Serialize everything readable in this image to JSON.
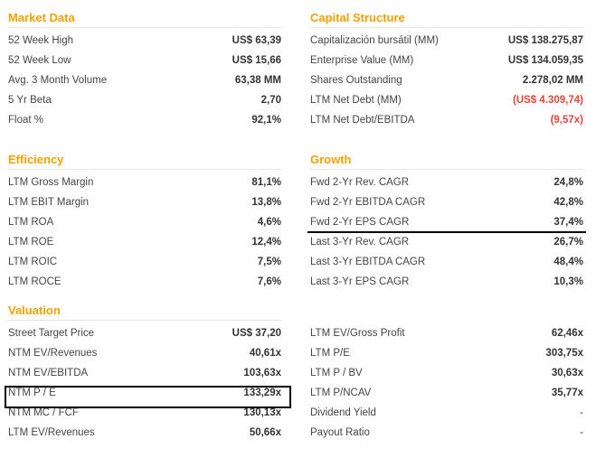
{
  "sections": {
    "market_data": {
      "title": "Market Data",
      "rows": [
        {
          "label": "52 Week High",
          "value": "US$ 63,39"
        },
        {
          "label": "52 Week Low",
          "value": "US$ 15,66"
        },
        {
          "label": "Avg. 3 Month Volume",
          "value": "63,38 MM"
        },
        {
          "label": "5 Yr Beta",
          "value": "2,70"
        },
        {
          "label": "Float %",
          "value": "92,1%"
        }
      ]
    },
    "capital_structure": {
      "title": "Capital Structure",
      "rows": [
        {
          "label": "Capitalización bursátil (MM)",
          "value": "US$ 138.275,87"
        },
        {
          "label": "Enterprise Value (MM)",
          "value": "US$ 134.059,35"
        },
        {
          "label": "Shares Outstanding",
          "value": "2.278,02 MM"
        },
        {
          "label": "LTM Net Debt (MM)",
          "value": "(US$ 4.309,74)"
        },
        {
          "label": "LTM Net Debt/EBITDA",
          "value": "(9,57x)"
        }
      ]
    },
    "efficiency": {
      "title": "Efficiency",
      "rows": [
        {
          "label": "LTM Gross Margin",
          "value": "81,1%"
        },
        {
          "label": "LTM EBIT Margin",
          "value": "13,8%"
        },
        {
          "label": "LTM ROA",
          "value": "4,6%"
        },
        {
          "label": "LTM ROE",
          "value": "12,4%"
        },
        {
          "label": "LTM ROIC",
          "value": "7,5%"
        },
        {
          "label": "LTM ROCE",
          "value": "7,6%"
        }
      ]
    },
    "growth": {
      "title": "Growth",
      "rows": [
        {
          "label": "Fwd 2-Yr Rev. CAGR",
          "value": "24,8%"
        },
        {
          "label": "Fwd 2-Yr EBITDA CAGR",
          "value": "42,8%"
        },
        {
          "label": "Fwd 2-Yr EPS CAGR",
          "value": "37,4%"
        },
        {
          "label": "Last 3-Yr Rev. CAGR",
          "value": "26,7%"
        },
        {
          "label": "Last 3-Yr EBITDA CAGR",
          "value": "48,4%"
        },
        {
          "label": "Last 3-Yr EPS CAGR",
          "value": "10,3%"
        }
      ]
    },
    "valuation": {
      "title": "Valuation",
      "left_rows": [
        {
          "label": "Street Target Price",
          "value": "US$ 37,20"
        },
        {
          "label": "NTM EV/Revenues",
          "value": "40,61x"
        },
        {
          "label": "NTM EV/EBITDA",
          "value": "103,63x"
        },
        {
          "label": "NTM P / E",
          "value": "133,29x"
        },
        {
          "label": "NTM MC / FCF",
          "value": "130,13x"
        },
        {
          "label": "LTM EV/Revenues",
          "value": "50,66x"
        }
      ],
      "right_rows": [
        {
          "label": "LTM EV/Gross Profit",
          "value": "62,46x"
        },
        {
          "label": "LTM P/E",
          "value": "303,75x"
        },
        {
          "label": "LTM P / BV",
          "value": "30,63x"
        },
        {
          "label": "LTM P/NCAV",
          "value": "35,77x"
        },
        {
          "label": "Dividend Yield",
          "value": "-"
        },
        {
          "label": "Payout Ratio",
          "value": "-"
        }
      ]
    }
  },
  "colors": {
    "accent": "#f5a000",
    "negative": "#e8443a"
  }
}
